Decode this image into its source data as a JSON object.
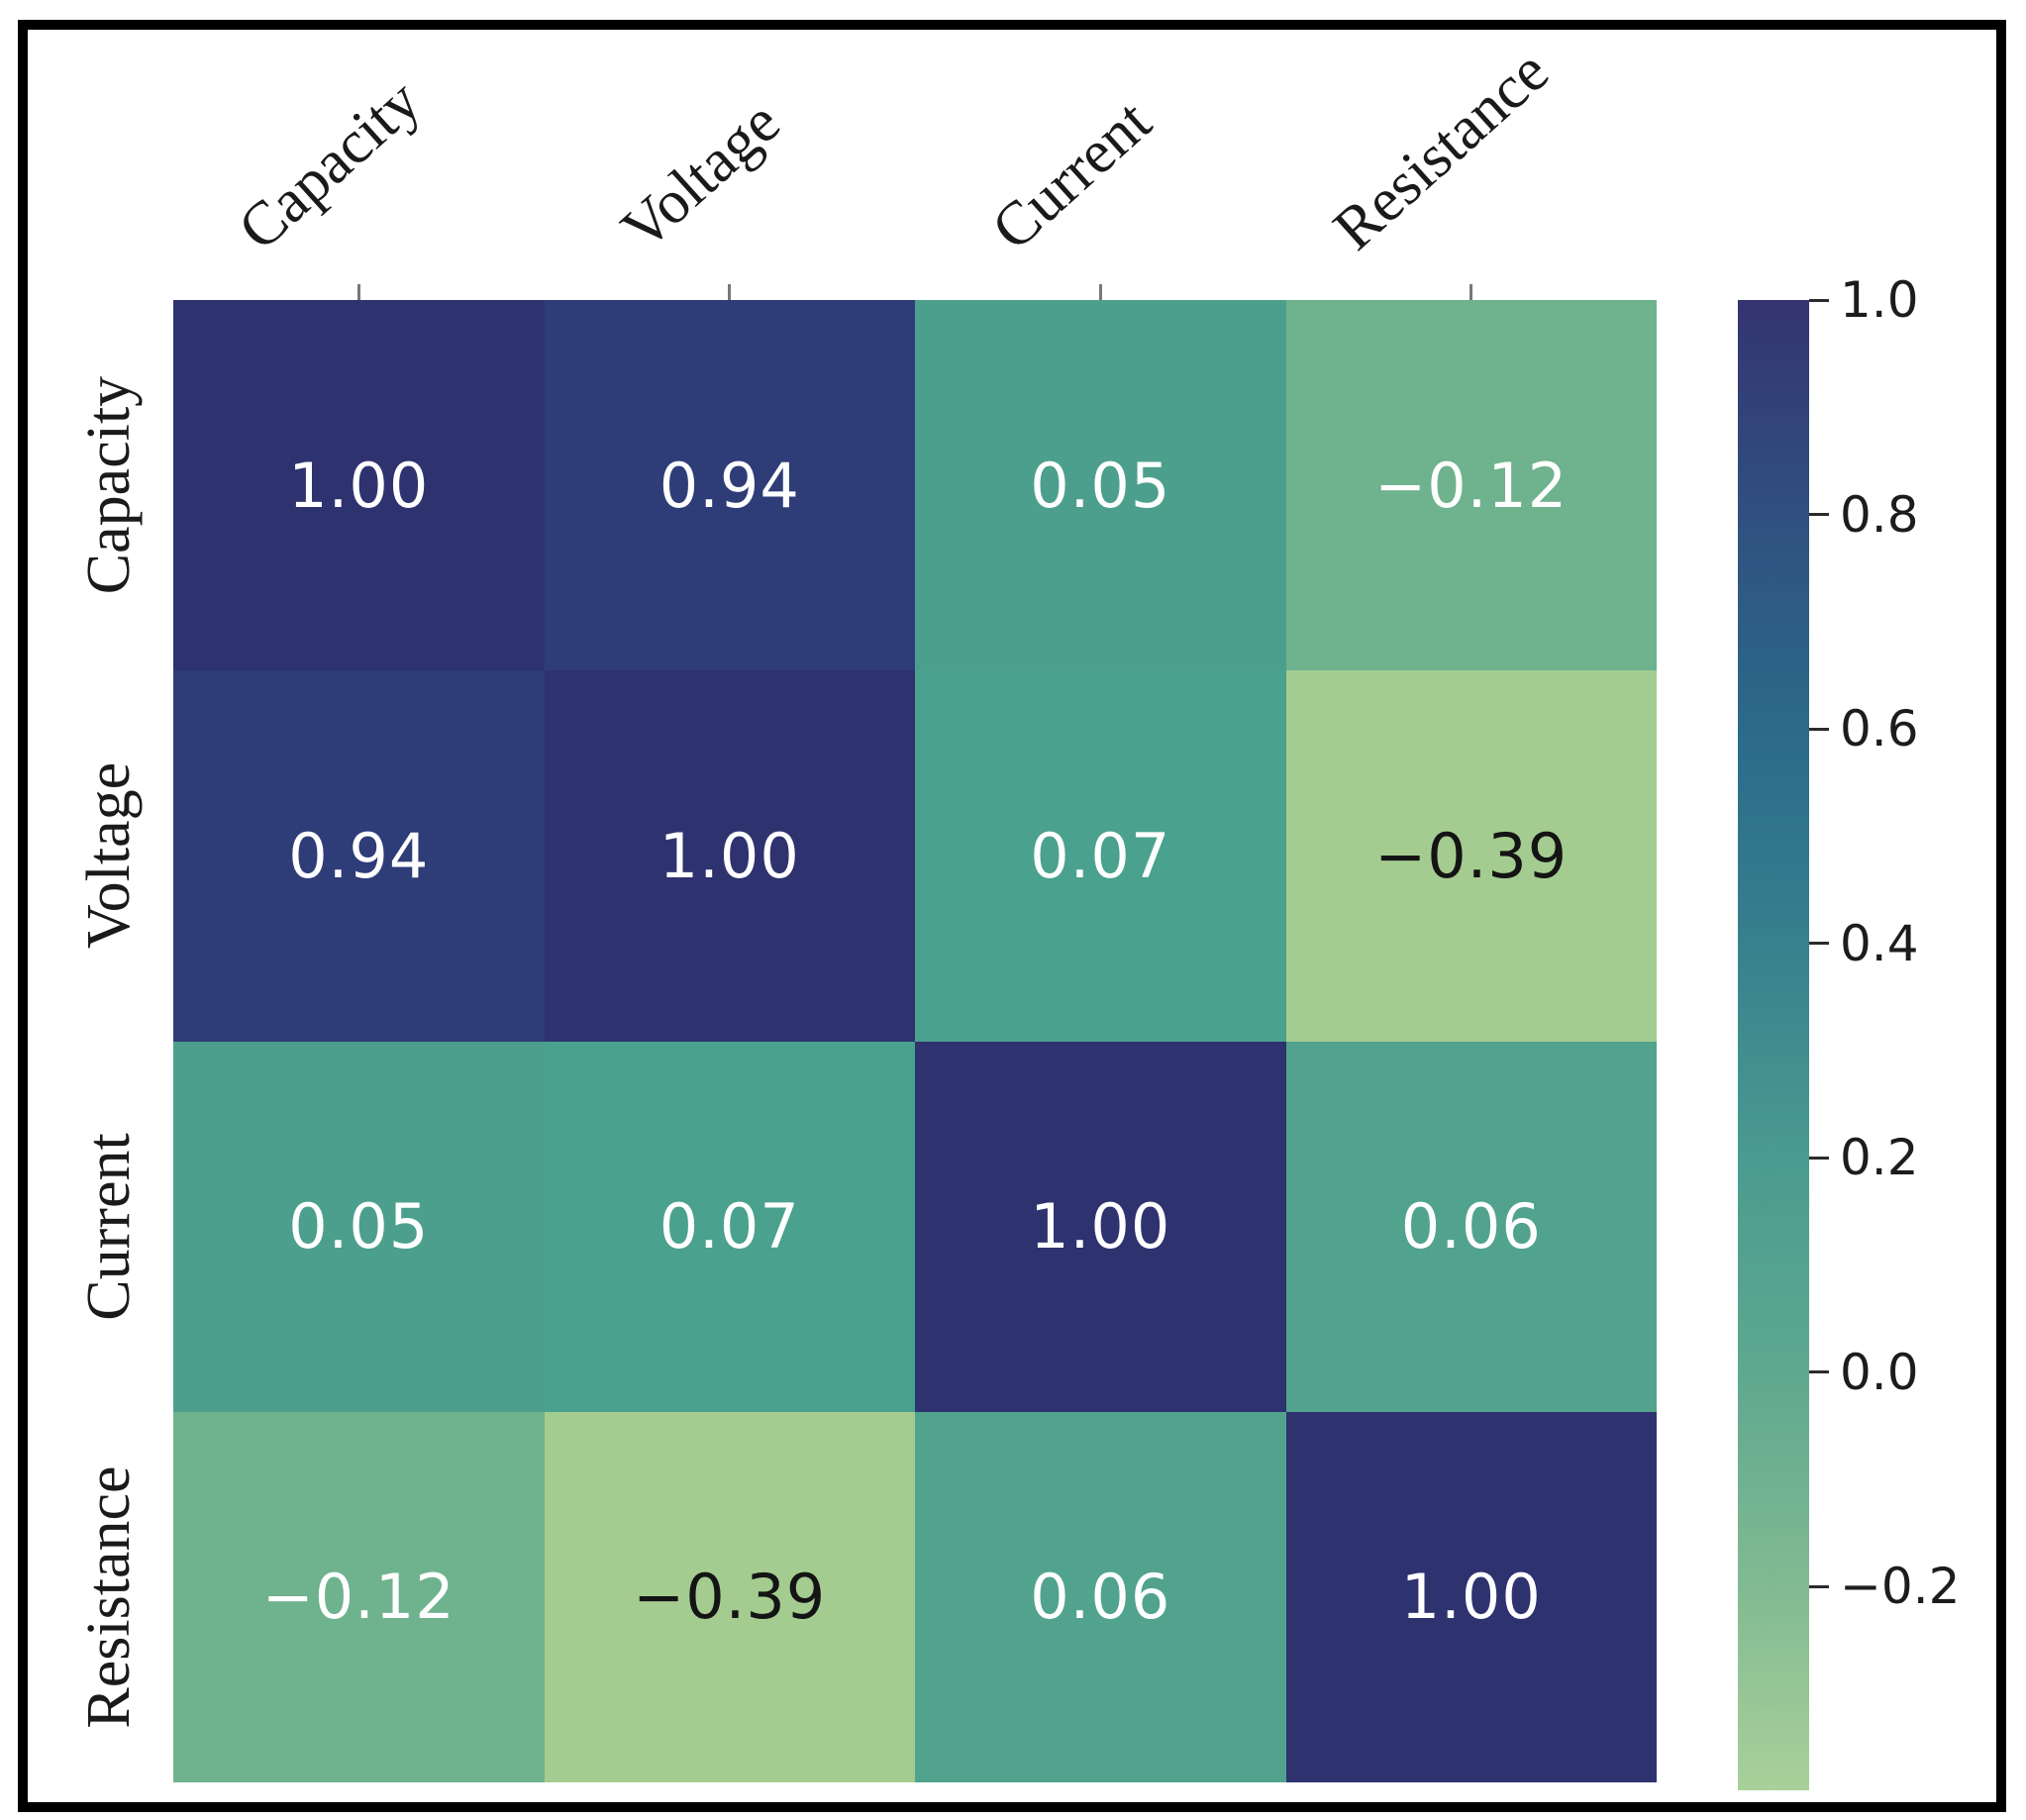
{
  "figure": {
    "background_color": "#ffffff",
    "border_color": "#000000"
  },
  "chart_data": {
    "type": "heatmap",
    "title": "",
    "xlabel": "",
    "ylabel": "",
    "variables": [
      "Capacity",
      "Voltage",
      "Current",
      "Resistance"
    ],
    "matrix": [
      [
        1.0,
        0.94,
        0.05,
        -0.12
      ],
      [
        0.94,
        1.0,
        0.07,
        -0.39
      ],
      [
        0.05,
        0.07,
        1.0,
        0.06
      ],
      [
        -0.12,
        -0.39,
        0.06,
        1.0
      ]
    ],
    "cell_text": [
      [
        "1.00",
        "0.94",
        "0.05",
        "−0.12"
      ],
      [
        "0.94",
        "1.00",
        "0.07",
        "−0.39"
      ],
      [
        "0.05",
        "0.07",
        "1.00",
        "0.06"
      ],
      [
        "−0.12",
        "−0.39",
        "0.06",
        "1.00"
      ]
    ],
    "cell_colors": [
      [
        "#2e326f",
        "#2e3c77",
        "#4d9f8d",
        "#6fb28e"
      ],
      [
        "#2e3c77",
        "#2e326f",
        "#4aa18e",
        "#a4cc90"
      ],
      [
        "#4d9f8d",
        "#4aa18e",
        "#2e326f",
        "#52a38e"
      ],
      [
        "#6fb28e",
        "#a4cc90",
        "#52a38e",
        "#2e326f"
      ]
    ],
    "cell_text_colors": [
      [
        "#ffffff",
        "#ffffff",
        "#ffffff",
        "#ffffff"
      ],
      [
        "#ffffff",
        "#ffffff",
        "#ffffff",
        "#141414"
      ],
      [
        "#ffffff",
        "#ffffff",
        "#ffffff",
        "#ffffff"
      ],
      [
        "#ffffff",
        "#141414",
        "#ffffff",
        "#ffffff"
      ]
    ],
    "colorbar": {
      "vmin": -0.39,
      "vmax": 1.0,
      "tick_labels": [
        "1.0",
        "0.8",
        "0.6",
        "0.4",
        "0.2",
        "0.0",
        "−0.2"
      ],
      "tick_values": [
        1.0,
        0.8,
        0.6,
        0.4,
        0.2,
        0.0,
        -0.2
      ],
      "gradient_stops": [
        {
          "frac": 0.0,
          "color": "#343470"
        },
        {
          "frac": 0.144,
          "color": "#30507f"
        },
        {
          "frac": 0.288,
          "color": "#2b6a8a"
        },
        {
          "frac": 0.432,
          "color": "#37808e"
        },
        {
          "frac": 0.576,
          "color": "#4a9b90"
        },
        {
          "frac": 0.719,
          "color": "#5ea88f"
        },
        {
          "frac": 0.863,
          "color": "#81ba92"
        },
        {
          "frac": 1.0,
          "color": "#a9d099"
        }
      ],
      "legend_position": "right"
    },
    "colormap_name": "crest",
    "grid": false
  }
}
